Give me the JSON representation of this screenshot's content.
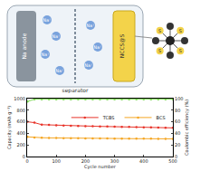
{
  "diagram": {
    "anode": "Na anode",
    "separator": "separator",
    "cathode": "NCCS@S",
    "ion": "Na⁺",
    "sulfur": "S"
  },
  "chart_data": {
    "type": "line",
    "x": [
      1,
      25,
      50,
      75,
      100,
      125,
      150,
      175,
      200,
      225,
      250,
      275,
      300,
      325,
      350,
      375,
      400,
      425,
      450,
      475,
      500
    ],
    "series": [
      {
        "name": "TCBS",
        "color": "#e8342a",
        "marker": "circle",
        "values": [
          600,
          585,
          550,
          545,
          540,
          535,
          530,
          528,
          525,
          522,
          520,
          518,
          515,
          512,
          510,
          508,
          505,
          503,
          500,
          498,
          495
        ]
      },
      {
        "name": "BCS",
        "color": "#f5a623",
        "marker": "circle",
        "values": [
          340,
          330,
          325,
          322,
          320,
          318,
          316,
          315,
          314,
          313,
          312,
          311,
          310,
          310,
          309,
          308,
          308,
          307,
          306,
          305,
          305
        ]
      },
      {
        "name": "Coulombic efficiency",
        "color": "#7ed957",
        "marker": "circle",
        "axis": "y2",
        "values": [
          95,
          99,
          99,
          99,
          99,
          99,
          99,
          99,
          99,
          99,
          99,
          99,
          99,
          99,
          99,
          99,
          99,
          99,
          99,
          99,
          99
        ]
      }
    ],
    "x_label": "Cycle number",
    "y_label": "Capacity (mAh g⁻¹)",
    "y2_label": "Coulombic efficiency (%)",
    "xlim": [
      0,
      500
    ],
    "xticks": [
      0,
      100,
      200,
      300,
      400,
      500
    ],
    "ylim": [
      0,
      1000
    ],
    "yticks": [
      0,
      200,
      400,
      600,
      800,
      1000
    ],
    "y2lim": [
      0,
      100
    ],
    "y2ticks": [
      0,
      20,
      40,
      60,
      80,
      100
    ],
    "grid": false,
    "legend": "upper right"
  }
}
